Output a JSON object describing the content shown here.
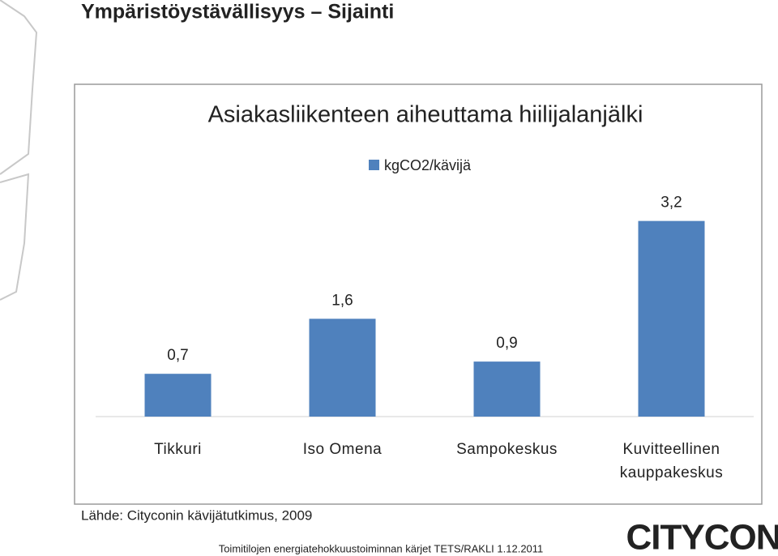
{
  "slide_title": "Ympäristöystävällisyys – Sijainti",
  "chart_data": {
    "type": "bar",
    "title": "Asiakasliikenteen aiheuttama hiilijalanjälki",
    "categories": [
      "Tikkuri",
      "Iso Omena",
      "Sampokeskus",
      "Kuvitteellinen kauppakeskus"
    ],
    "series": [
      {
        "name": "kgCO2/kävijä",
        "color": "#4f81bd",
        "values": [
          0.7,
          1.6,
          0.9,
          3.2
        ],
        "value_labels": [
          "0,7",
          "1,6",
          "0,9",
          "3,2"
        ]
      }
    ],
    "ylim": [
      0,
      3.5
    ],
    "legend": "top"
  },
  "source": "Lähde: Cityconin kävijätutkimus, 2009",
  "footer": "Toimitilojen energiatehokkuustoiminnan kärjet TETS/RAKLI 1.12.2011",
  "logo": "CITYCON"
}
